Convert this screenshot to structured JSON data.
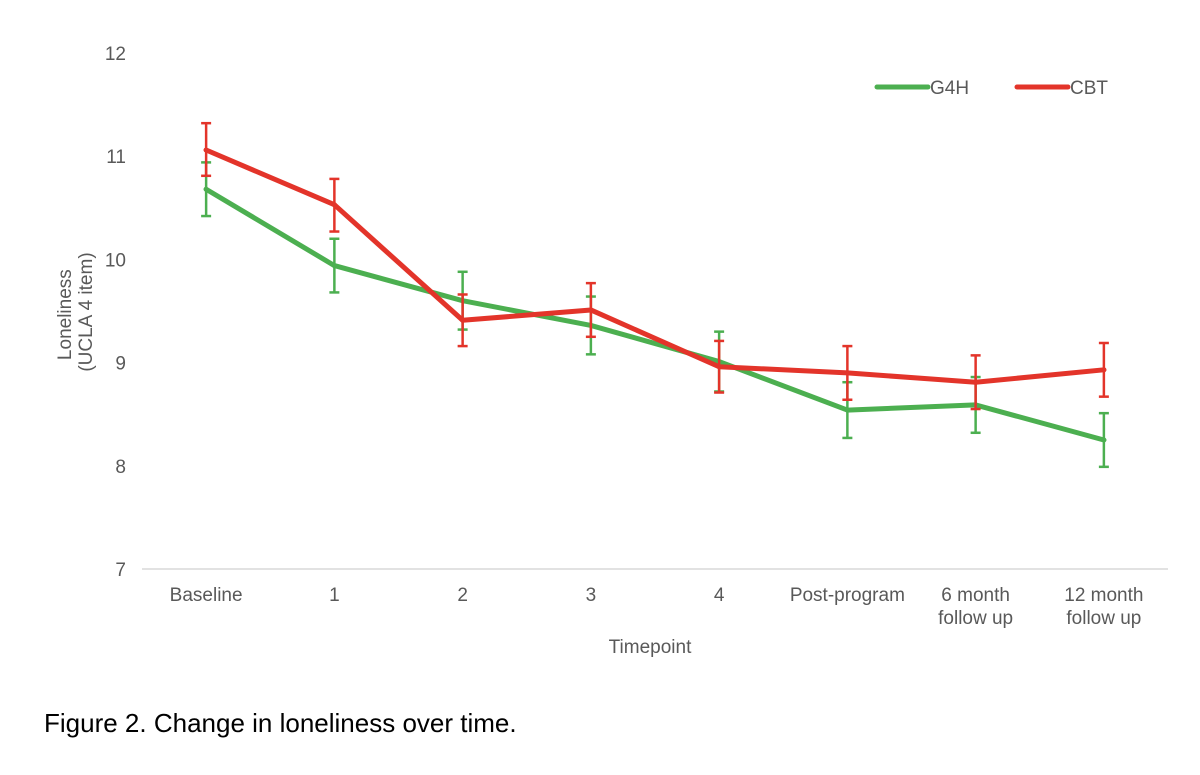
{
  "chart_data": {
    "type": "line",
    "title": "",
    "xlabel": "Timepoint",
    "ylabel_lines": [
      "Loneliness",
      "(UCLA 4 item)"
    ],
    "ylim": [
      7,
      12
    ],
    "yticks": [
      7,
      8,
      9,
      10,
      11,
      12
    ],
    "categories": [
      [
        "Baseline"
      ],
      [
        "1"
      ],
      [
        "2"
      ],
      [
        "3"
      ],
      [
        "4"
      ],
      [
        "Post-program"
      ],
      [
        "6 month",
        "follow up"
      ],
      [
        "12 month",
        "follow up"
      ]
    ],
    "grid": false,
    "legend_position": "top-right",
    "series": [
      {
        "name": "G4H",
        "color": "#4CAF50",
        "values": [
          10.68,
          9.94,
          9.6,
          9.36,
          9.01,
          8.54,
          8.59,
          8.25
        ],
        "error_low": [
          10.42,
          9.68,
          9.32,
          9.08,
          8.72,
          8.27,
          8.32,
          7.99
        ],
        "error_high": [
          10.94,
          10.2,
          9.88,
          9.64,
          9.3,
          8.81,
          8.86,
          8.51
        ]
      },
      {
        "name": "CBT",
        "color": "#E3342A",
        "values": [
          11.06,
          10.53,
          9.41,
          9.51,
          8.96,
          8.9,
          8.81,
          8.93
        ],
        "error_low": [
          10.81,
          10.27,
          9.16,
          9.25,
          8.71,
          8.64,
          8.55,
          8.67
        ],
        "error_high": [
          11.32,
          10.78,
          9.66,
          9.77,
          9.21,
          9.16,
          9.07,
          9.19
        ]
      }
    ]
  },
  "caption": "Figure 2. Change in loneliness over time."
}
